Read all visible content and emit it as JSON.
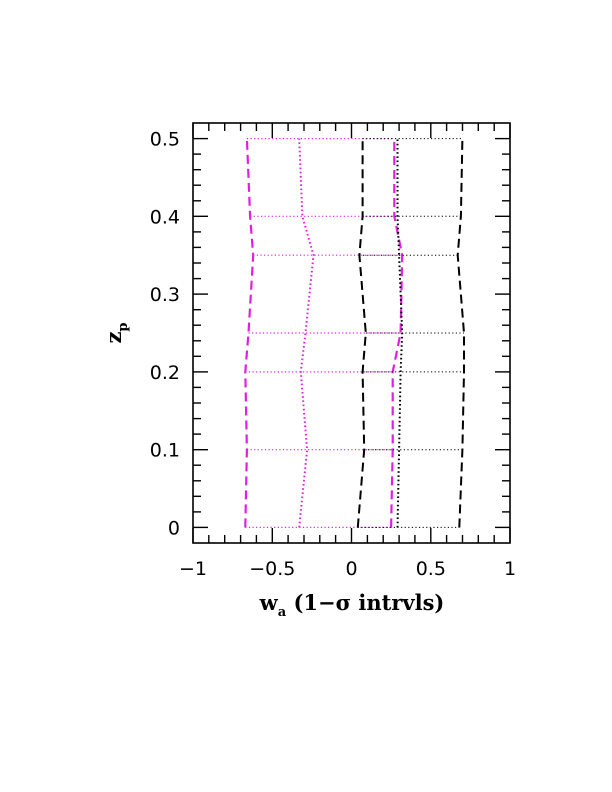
{
  "chart_data": {
    "type": "line",
    "title": "",
    "xlabel": {
      "main": "w",
      "sub": "a",
      "rest": " (1−σ intrvls)"
    },
    "ylabel": {
      "main": "z",
      "sub": "p"
    },
    "xlim": [
      -1,
      1
    ],
    "ylim": [
      -0.02,
      0.52
    ],
    "x_ticks": [
      -1,
      -0.5,
      0,
      0.5,
      1
    ],
    "x_tick_labels": [
      "−1",
      "−0.5",
      "0",
      "0.5",
      "1"
    ],
    "y_ticks": [
      0,
      0.1,
      0.2,
      0.3,
      0.4,
      0.5
    ],
    "y_tick_labels": [
      "0",
      "0.1",
      "0.2",
      "0.3",
      "0.4",
      "0.5"
    ],
    "z_values": [
      0,
      0.1,
      0.2,
      0.25,
      0.35,
      0.4,
      0.5
    ],
    "grid": false,
    "series": [
      {
        "color": "#e020e0",
        "style": "dashed",
        "width": 2.2,
        "values": [
          -0.67,
          -0.66,
          -0.67,
          -0.65,
          -0.62,
          -0.64,
          -0.66
        ]
      },
      {
        "color": "#e020e0",
        "style": "dotted",
        "width": 2.0,
        "values": [
          -0.33,
          -0.28,
          -0.32,
          -0.29,
          -0.24,
          -0.31,
          -0.33
        ]
      },
      {
        "color": "#e020e0",
        "style": "dashed",
        "width": 2.2,
        "values": [
          0.25,
          0.26,
          0.26,
          0.31,
          0.32,
          0.27,
          0.27
        ]
      },
      {
        "color": "#e020e0",
        "style": "dotted",
        "width": 1.2,
        "values": [
          -0.67,
          -0.66,
          -0.67,
          -0.65,
          -0.62,
          -0.64,
          -0.66
        ],
        "values_right": [
          0.25,
          0.26,
          0.26,
          0.31,
          0.32,
          0.27,
          0.27
        ]
      },
      {
        "color": "#000000",
        "style": "dashed",
        "width": 2.0,
        "values": [
          0.04,
          0.08,
          0.07,
          0.09,
          0.05,
          0.07,
          0.07
        ]
      },
      {
        "color": "#000000",
        "style": "dotted",
        "width": 2.0,
        "values": [
          0.29,
          0.3,
          0.31,
          0.32,
          0.3,
          0.29,
          0.29
        ]
      },
      {
        "color": "#000000",
        "style": "dashed",
        "width": 2.0,
        "values": [
          0.68,
          0.7,
          0.71,
          0.71,
          0.67,
          0.69,
          0.7
        ]
      },
      {
        "color": "#000000",
        "style": "dotted",
        "width": 1.0,
        "values": [
          0.04,
          0.08,
          0.07,
          0.09,
          0.05,
          0.07,
          0.07
        ],
        "values_right": [
          0.68,
          0.7,
          0.71,
          0.71,
          0.67,
          0.69,
          0.7
        ]
      }
    ]
  }
}
